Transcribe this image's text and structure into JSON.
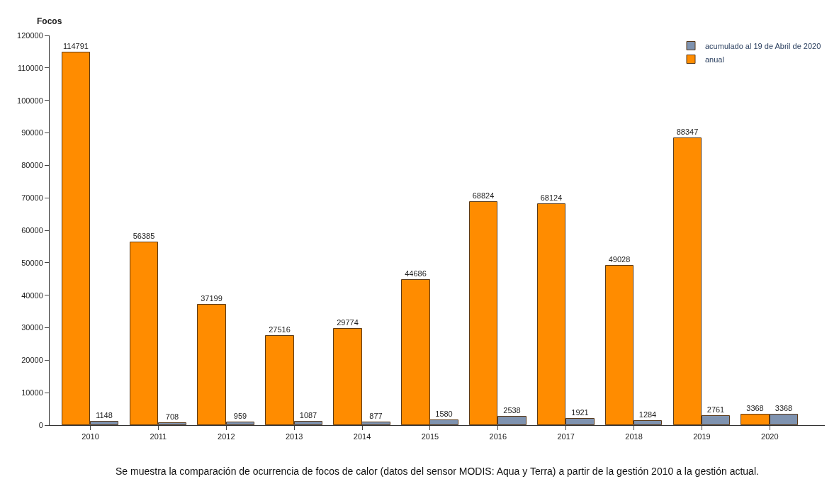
{
  "chart_data": {
    "type": "bar",
    "ylabel": "Focos",
    "categories": [
      "2010",
      "2011",
      "2012",
      "2013",
      "2014",
      "2015",
      "2016",
      "2017",
      "2018",
      "2019",
      "2020"
    ],
    "series": [
      {
        "name": "anual",
        "color": "#ff8c00",
        "values": [
          114791,
          56385,
          37199,
          27516,
          29774,
          44686,
          68824,
          68124,
          49028,
          88347,
          3368
        ]
      },
      {
        "name": "acumulado al 19 de Abril de 2020",
        "color": "#7f93b0",
        "values": [
          1148,
          708,
          959,
          1087,
          877,
          1580,
          2538,
          1921,
          1284,
          2761,
          3368
        ]
      }
    ],
    "ylim": [
      0,
      120000
    ],
    "yticks": [
      0,
      10000,
      20000,
      30000,
      40000,
      50000,
      60000,
      70000,
      80000,
      90000,
      100000,
      110000,
      120000
    ],
    "data_labels": true,
    "legend": "top right",
    "annotations": [
      "Se muestra la comparación de ocurrencia de focos de calor (datos del sensor MODIS: Aqua y Terra) a partir de la gestión 2010 a la gestión actual."
    ]
  }
}
